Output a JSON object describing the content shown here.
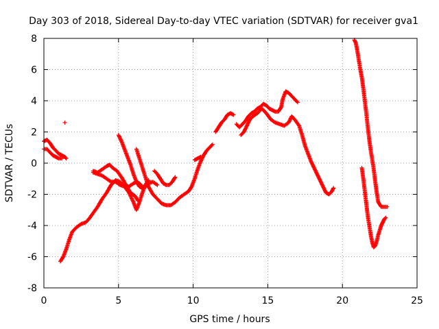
{
  "chart_data": {
    "type": "scatter",
    "title": "Day 303 of 2018, Sidereal Day-to-day VTEC variation (SDTVAR) for receiver gva1",
    "xlabel": "GPS time / hours",
    "ylabel": "SDTVAR / TECUs",
    "xlim": [
      0,
      25
    ],
    "ylim": [
      -8,
      8
    ],
    "xticks": [
      "0",
      "5",
      "10",
      "15",
      "20",
      "25"
    ],
    "yticks": [
      "-8",
      "-6",
      "-4",
      "-2",
      "0",
      "2",
      "4",
      "6",
      "8"
    ],
    "grid": true,
    "marker": "+",
    "color": "#ff0000",
    "series": [
      {
        "segments": [
          [
            [
              0.0,
              1.4
            ],
            [
              0.2,
              1.5
            ],
            [
              0.4,
              1.3
            ],
            [
              0.6,
              1.0
            ],
            [
              0.8,
              0.8
            ],
            [
              1.0,
              0.6
            ],
            [
              1.2,
              0.5
            ],
            [
              1.4,
              0.4
            ],
            [
              1.5,
              0.3
            ]
          ],
          [
            [
              0.0,
              0.9
            ],
            [
              0.2,
              0.9
            ],
            [
              0.4,
              0.7
            ],
            [
              0.6,
              0.5
            ],
            [
              0.8,
              0.4
            ],
            [
              1.0,
              0.3
            ],
            [
              1.2,
              0.3
            ]
          ],
          [
            [
              1.4,
              2.6
            ]
          ],
          [
            [
              1.1,
              -6.3
            ],
            [
              1.3,
              -6.0
            ],
            [
              1.5,
              -5.5
            ],
            [
              1.7,
              -4.9
            ],
            [
              1.9,
              -4.4
            ],
            [
              2.2,
              -4.1
            ],
            [
              2.5,
              -3.9
            ],
            [
              2.8,
              -3.8
            ],
            [
              3.0,
              -3.6
            ],
            [
              3.3,
              -3.2
            ],
            [
              3.6,
              -2.8
            ],
            [
              3.9,
              -2.3
            ],
            [
              4.2,
              -1.9
            ],
            [
              4.5,
              -1.4
            ],
            [
              4.8,
              -1.1
            ],
            [
              5.1,
              -1.2
            ],
            [
              5.4,
              -1.5
            ],
            [
              5.7,
              -1.9
            ],
            [
              6.0,
              -2.5
            ],
            [
              6.2,
              -3.0
            ],
            [
              6.4,
              -2.5
            ],
            [
              6.6,
              -1.9
            ],
            [
              6.8,
              -1.4
            ],
            [
              7.0,
              -1.1
            ]
          ],
          [
            [
              3.3,
              -0.6
            ],
            [
              3.6,
              -0.7
            ],
            [
              3.9,
              -0.8
            ],
            [
              4.2,
              -1.0
            ],
            [
              4.5,
              -1.2
            ],
            [
              4.8,
              -1.2
            ],
            [
              5.1,
              -1.4
            ],
            [
              5.4,
              -1.5
            ],
            [
              5.7,
              -1.5
            ],
            [
              6.0,
              -1.3
            ],
            [
              6.2,
              -1.2
            ],
            [
              6.4,
              -1.3
            ],
            [
              6.6,
              -1.5
            ]
          ],
          [
            [
              3.3,
              -0.5
            ],
            [
              3.6,
              -0.6
            ],
            [
              3.9,
              -0.4
            ],
            [
              4.2,
              -0.2
            ],
            [
              4.4,
              -0.1
            ],
            [
              4.6,
              -0.3
            ],
            [
              4.9,
              -0.5
            ],
            [
              5.2,
              -0.9
            ],
            [
              5.5,
              -1.4
            ],
            [
              5.8,
              -1.9
            ],
            [
              6.1,
              -2.1
            ],
            [
              6.3,
              -2.4
            ]
          ],
          [
            [
              5.0,
              1.8
            ],
            [
              5.2,
              1.4
            ],
            [
              5.4,
              0.9
            ],
            [
              5.6,
              0.4
            ],
            [
              5.8,
              -0.1
            ],
            [
              6.0,
              -0.7
            ],
            [
              6.2,
              -1.2
            ],
            [
              6.4,
              -1.5
            ],
            [
              6.6,
              -1.6
            ],
            [
              6.8,
              -1.5
            ],
            [
              7.0,
              -1.3
            ],
            [
              7.3,
              -1.2
            ],
            [
              7.6,
              -1.4
            ]
          ],
          [
            [
              6.2,
              0.9
            ],
            [
              6.4,
              0.3
            ],
            [
              6.6,
              -0.3
            ],
            [
              6.8,
              -0.9
            ],
            [
              7.0,
              -1.5
            ],
            [
              7.3,
              -2.0
            ],
            [
              7.6,
              -2.3
            ],
            [
              7.9,
              -2.6
            ],
            [
              8.2,
              -2.7
            ],
            [
              8.5,
              -2.7
            ],
            [
              8.8,
              -2.5
            ],
            [
              9.1,
              -2.2
            ],
            [
              9.4,
              -2.0
            ],
            [
              9.7,
              -1.8
            ],
            [
              9.9,
              -1.5
            ],
            [
              10.1,
              -1.0
            ],
            [
              10.3,
              -0.4
            ],
            [
              10.5,
              0.1
            ],
            [
              10.7,
              0.5
            ],
            [
              10.9,
              0.8
            ],
            [
              11.1,
              1.0
            ],
            [
              11.3,
              1.2
            ]
          ],
          [
            [
              7.4,
              -0.5
            ],
            [
              7.6,
              -0.7
            ],
            [
              7.8,
              -1.0
            ],
            [
              8.0,
              -1.3
            ],
            [
              8.2,
              -1.4
            ],
            [
              8.4,
              -1.4
            ],
            [
              8.6,
              -1.2
            ],
            [
              8.8,
              -0.9
            ]
          ],
          [
            [
              10.1,
              0.2
            ],
            [
              10.3,
              0.3
            ],
            [
              10.5,
              0.4
            ]
          ],
          [
            [
              11.5,
              2.0
            ],
            [
              11.7,
              2.3
            ],
            [
              11.9,
              2.6
            ],
            [
              12.1,
              2.8
            ],
            [
              12.3,
              3.1
            ],
            [
              12.5,
              3.2
            ],
            [
              12.7,
              3.1
            ]
          ],
          [
            [
              12.9,
              2.5
            ],
            [
              13.1,
              2.3
            ],
            [
              13.3,
              2.5
            ],
            [
              13.5,
              2.7
            ],
            [
              13.7,
              3.0
            ],
            [
              13.9,
              3.2
            ],
            [
              14.1,
              3.3
            ],
            [
              14.3,
              3.5
            ],
            [
              14.5,
              3.6
            ],
            [
              14.7,
              3.8
            ],
            [
              14.9,
              3.7
            ],
            [
              15.1,
              3.5
            ],
            [
              15.3,
              3.4
            ],
            [
              15.5,
              3.3
            ],
            [
              15.7,
              3.3
            ],
            [
              15.9,
              3.6
            ],
            [
              16.0,
              4.1
            ],
            [
              16.2,
              4.6
            ],
            [
              16.4,
              4.5
            ],
            [
              16.6,
              4.3
            ],
            [
              16.8,
              4.1
            ],
            [
              17.0,
              3.9
            ]
          ],
          [
            [
              13.2,
              1.8
            ],
            [
              13.4,
              2.0
            ],
            [
              13.6,
              2.4
            ],
            [
              13.8,
              2.8
            ],
            [
              14.0,
              3.0
            ],
            [
              14.3,
              3.2
            ],
            [
              14.6,
              3.5
            ],
            [
              14.9,
              3.2
            ],
            [
              15.2,
              2.8
            ],
            [
              15.5,
              2.6
            ],
            [
              15.8,
              2.5
            ],
            [
              16.1,
              2.4
            ],
            [
              16.4,
              2.6
            ],
            [
              16.6,
              3.0
            ],
            [
              16.8,
              2.8
            ],
            [
              17.1,
              2.4
            ],
            [
              17.3,
              1.8
            ],
            [
              17.5,
              1.1
            ],
            [
              17.7,
              0.6
            ],
            [
              17.9,
              0.1
            ],
            [
              18.1,
              -0.3
            ],
            [
              18.3,
              -0.7
            ],
            [
              18.5,
              -1.1
            ],
            [
              18.7,
              -1.5
            ],
            [
              18.9,
              -1.9
            ],
            [
              19.1,
              -2.0
            ],
            [
              19.3,
              -1.8
            ],
            [
              19.4,
              -1.6
            ]
          ],
          [
            [
              20.8,
              7.9
            ],
            [
              20.9,
              7.7
            ],
            [
              21.0,
              7.2
            ],
            [
              21.1,
              6.6
            ],
            [
              21.2,
              6.0
            ],
            [
              21.3,
              5.5
            ],
            [
              21.4,
              4.8
            ],
            [
              21.5,
              4.0
            ],
            [
              21.6,
              3.2
            ],
            [
              21.7,
              2.3
            ],
            [
              21.8,
              1.5
            ],
            [
              21.9,
              0.8
            ],
            [
              22.0,
              0.2
            ],
            [
              22.1,
              -0.4
            ],
            [
              22.2,
              -1.2
            ],
            [
              22.3,
              -1.9
            ],
            [
              22.4,
              -2.5
            ],
            [
              22.6,
              -2.8
            ],
            [
              22.8,
              -2.8
            ],
            [
              23.0,
              -2.8
            ]
          ],
          [
            [
              21.3,
              -0.3
            ],
            [
              21.4,
              -1.0
            ],
            [
              21.5,
              -1.8
            ],
            [
              21.6,
              -2.6
            ],
            [
              21.7,
              -3.4
            ],
            [
              21.8,
              -4.0
            ],
            [
              21.9,
              -4.6
            ],
            [
              22.0,
              -5.1
            ],
            [
              22.1,
              -5.4
            ],
            [
              22.2,
              -5.3
            ],
            [
              22.3,
              -5.0
            ],
            [
              22.4,
              -4.6
            ],
            [
              22.5,
              -4.3
            ],
            [
              22.6,
              -4.0
            ],
            [
              22.7,
              -3.8
            ],
            [
              22.8,
              -3.6
            ],
            [
              22.9,
              -3.5
            ]
          ]
        ]
      }
    ]
  }
}
